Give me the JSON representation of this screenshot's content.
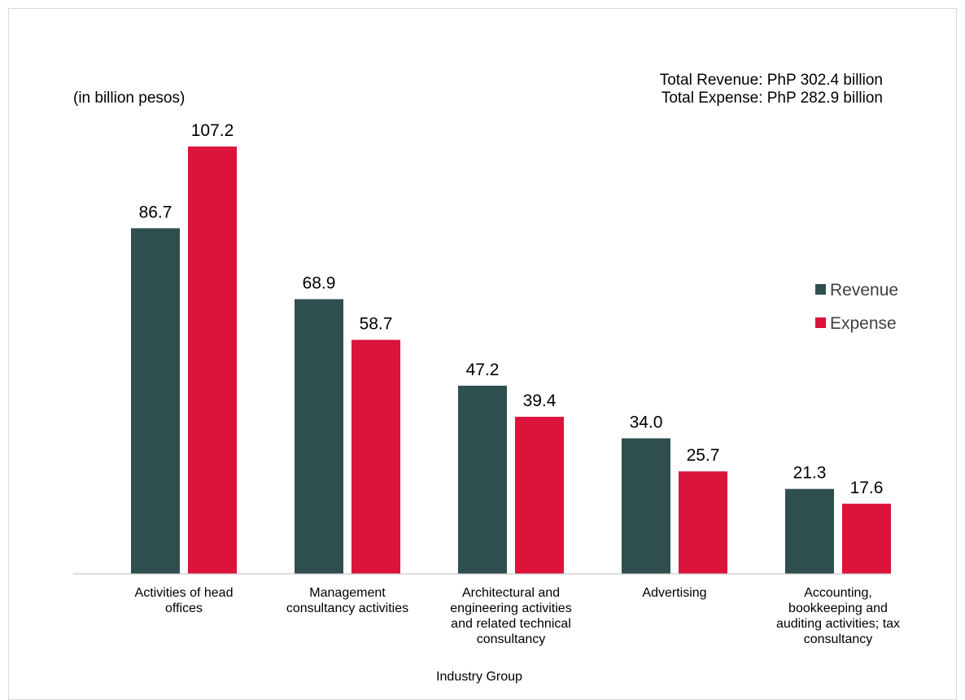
{
  "chart_data": {
    "type": "bar",
    "unit_label": "(in billion pesos)",
    "totals": {
      "revenue_line": "Total Revenue:  PhP 302.4 billion",
      "expense_line": "Total Expense:  PhP 282.9 billion"
    },
    "xlabel": "Industry Group",
    "ylabel": "",
    "categories": [
      [
        "Activities of head",
        "offices"
      ],
      [
        "Management",
        "consultancy activities"
      ],
      [
        "Architectural and",
        "engineering activities",
        "and related technical",
        "consultancy"
      ],
      [
        "Advertising"
      ],
      [
        "Accounting,",
        "bookkeeping and",
        "auditing activities; tax",
        "consultancy"
      ]
    ],
    "series": [
      {
        "name": "Revenue",
        "color": "#2f4f4f",
        "values": [
          86.7,
          68.9,
          47.2,
          34.0,
          21.3
        ],
        "labels": [
          "86.7",
          "68.9",
          "47.2",
          "34.0",
          "21.3"
        ]
      },
      {
        "name": "Expense",
        "color": "#dc143c",
        "values": [
          107.2,
          58.7,
          39.4,
          25.7,
          17.6
        ],
        "labels": [
          "107.2",
          "58.7",
          "39.4",
          "25.7",
          "17.6"
        ]
      }
    ],
    "ylim": [
      0,
      107.2
    ],
    "legend_position": "right",
    "grid": false
  }
}
